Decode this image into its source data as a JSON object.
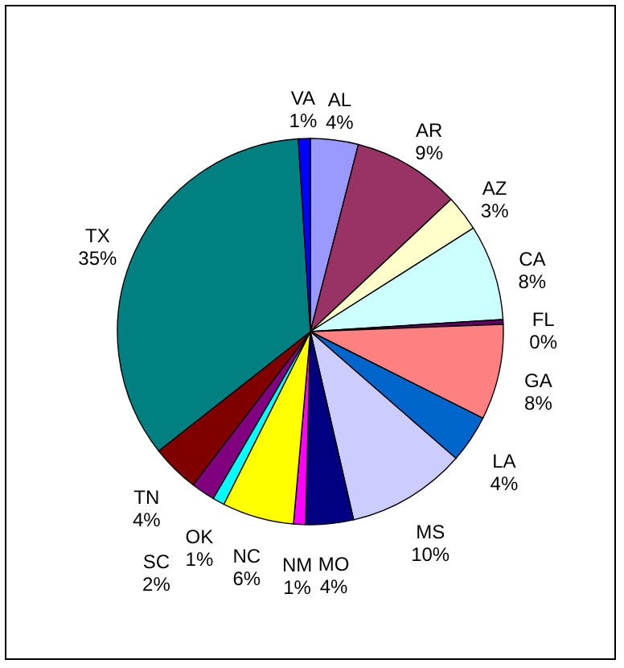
{
  "chart_data": {
    "type": "pie",
    "categories": [
      "AL",
      "AR",
      "AZ",
      "CA",
      "FL",
      "GA",
      "LA",
      "MS",
      "MO",
      "NM",
      "NC",
      "OK",
      "SC",
      "TN",
      "TX",
      "VA"
    ],
    "values": [
      4,
      9,
      3,
      8,
      0.4,
      8,
      4,
      10,
      4,
      1,
      6,
      1,
      2,
      4,
      34.6,
      1
    ],
    "value_labels": [
      "4%",
      "9%",
      "3%",
      "8%",
      "0%",
      "8%",
      "4%",
      "10%",
      "4%",
      "1%",
      "6%",
      "1%",
      "2%",
      "4%",
      "35%",
      "1%"
    ],
    "colors": [
      "#9999ff",
      "#993366",
      "#ffffcc",
      "#ccffff",
      "#660066",
      "#ff8080",
      "#0066cc",
      "#ccccff",
      "#000080",
      "#ff00ff",
      "#ffff00",
      "#00ffff",
      "#800080",
      "#800000",
      "#008080",
      "#0000ff"
    ]
  }
}
